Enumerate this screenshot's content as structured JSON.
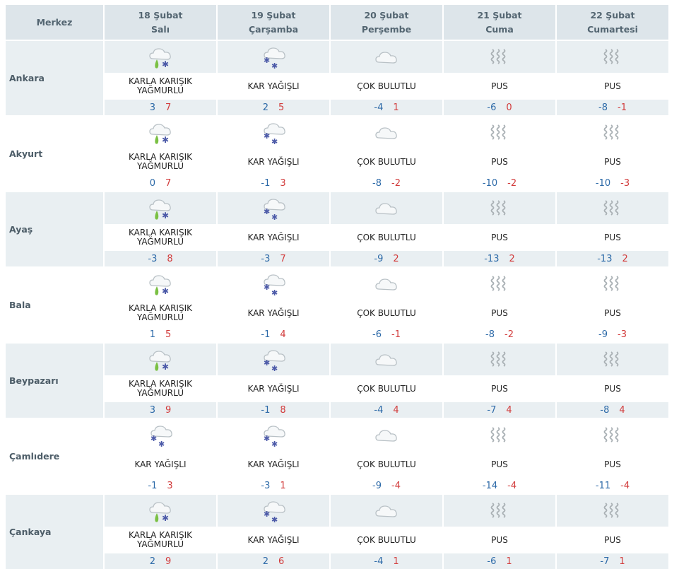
{
  "header": {
    "merkez": "Merkez",
    "days": [
      {
        "date": "18 Şubat",
        "weekday": "Salı"
      },
      {
        "date": "19 Şubat",
        "weekday": "Çarşamba"
      },
      {
        "date": "20 Şubat",
        "weekday": "Perşembe"
      },
      {
        "date": "21 Şubat",
        "weekday": "Cuma"
      },
      {
        "date": "22 Şubat",
        "weekday": "Cumartesi"
      }
    ]
  },
  "cities": [
    {
      "name": "Ankara",
      "days": [
        {
          "icon": "sleet-icon",
          "text": "KARLA KARIŞIK YAĞMURLU",
          "min": "3",
          "max": "7"
        },
        {
          "icon": "snow-icon",
          "text": "KAR YAĞIŞLI",
          "min": "2",
          "max": "5"
        },
        {
          "icon": "cloud-icon",
          "text": "ÇOK BULUTLU",
          "min": "-4",
          "max": "1"
        },
        {
          "icon": "fog-icon",
          "text": "PUS",
          "min": "-6",
          "max": "0"
        },
        {
          "icon": "fog-icon",
          "text": "PUS",
          "min": "-8",
          "max": "-1"
        }
      ]
    },
    {
      "name": "Akyurt",
      "days": [
        {
          "icon": "sleet-icon",
          "text": "KARLA KARIŞIK YAĞMURLU",
          "min": "0",
          "max": "7"
        },
        {
          "icon": "snow-icon",
          "text": "KAR YAĞIŞLI",
          "min": "-1",
          "max": "3"
        },
        {
          "icon": "cloud-icon",
          "text": "ÇOK BULUTLU",
          "min": "-8",
          "max": "-2"
        },
        {
          "icon": "fog-icon",
          "text": "PUS",
          "min": "-10",
          "max": "-2"
        },
        {
          "icon": "fog-icon",
          "text": "PUS",
          "min": "-10",
          "max": "-3"
        }
      ]
    },
    {
      "name": "Ayaş",
      "days": [
        {
          "icon": "sleet-icon",
          "text": "KARLA KARIŞIK YAĞMURLU",
          "min": "-3",
          "max": "8"
        },
        {
          "icon": "snow-icon",
          "text": "KAR YAĞIŞLI",
          "min": "-3",
          "max": "7"
        },
        {
          "icon": "cloud-icon",
          "text": "ÇOK BULUTLU",
          "min": "-9",
          "max": "2"
        },
        {
          "icon": "fog-icon",
          "text": "PUS",
          "min": "-13",
          "max": "2"
        },
        {
          "icon": "fog-icon",
          "text": "PUS",
          "min": "-13",
          "max": "2"
        }
      ]
    },
    {
      "name": "Bala",
      "days": [
        {
          "icon": "sleet-icon",
          "text": "KARLA KARIŞIK YAĞMURLU",
          "min": "1",
          "max": "5"
        },
        {
          "icon": "snow-icon",
          "text": "KAR YAĞIŞLI",
          "min": "-1",
          "max": "4"
        },
        {
          "icon": "cloud-icon",
          "text": "ÇOK BULUTLU",
          "min": "-6",
          "max": "-1"
        },
        {
          "icon": "fog-icon",
          "text": "PUS",
          "min": "-8",
          "max": "-2"
        },
        {
          "icon": "fog-icon",
          "text": "PUS",
          "min": "-9",
          "max": "-3"
        }
      ]
    },
    {
      "name": "Beypazarı",
      "days": [
        {
          "icon": "sleet-icon",
          "text": "KARLA KARIŞIK YAĞMURLU",
          "min": "3",
          "max": "9"
        },
        {
          "icon": "snow-icon",
          "text": "KAR YAĞIŞLI",
          "min": "-1",
          "max": "8"
        },
        {
          "icon": "cloud-icon",
          "text": "ÇOK BULUTLU",
          "min": "-4",
          "max": "4"
        },
        {
          "icon": "fog-icon",
          "text": "PUS",
          "min": "-7",
          "max": "4"
        },
        {
          "icon": "fog-icon",
          "text": "PUS",
          "min": "-8",
          "max": "4"
        }
      ]
    },
    {
      "name": "Çamlıdere",
      "days": [
        {
          "icon": "snow-icon",
          "text": "KAR YAĞIŞLI",
          "min": "-1",
          "max": "3"
        },
        {
          "icon": "snow-icon",
          "text": "KAR YAĞIŞLI",
          "min": "-3",
          "max": "1"
        },
        {
          "icon": "cloud-icon",
          "text": "ÇOK BULUTLU",
          "min": "-9",
          "max": "-4"
        },
        {
          "icon": "fog-icon",
          "text": "PUS",
          "min": "-14",
          "max": "-4"
        },
        {
          "icon": "fog-icon",
          "text": "PUS",
          "min": "-11",
          "max": "-4"
        }
      ]
    },
    {
      "name": "Çankaya",
      "days": [
        {
          "icon": "sleet-icon",
          "text": "KARLA KARIŞIK YAĞMURLU",
          "min": "2",
          "max": "9"
        },
        {
          "icon": "snow-icon",
          "text": "KAR YAĞIŞLI",
          "min": "2",
          "max": "6"
        },
        {
          "icon": "cloud-icon",
          "text": "ÇOK BULUTLU",
          "min": "-4",
          "max": "1"
        },
        {
          "icon": "fog-icon",
          "text": "PUS",
          "min": "-6",
          "max": "1"
        },
        {
          "icon": "fog-icon",
          "text": "PUS",
          "min": "-7",
          "max": "1"
        }
      ]
    }
  ]
}
